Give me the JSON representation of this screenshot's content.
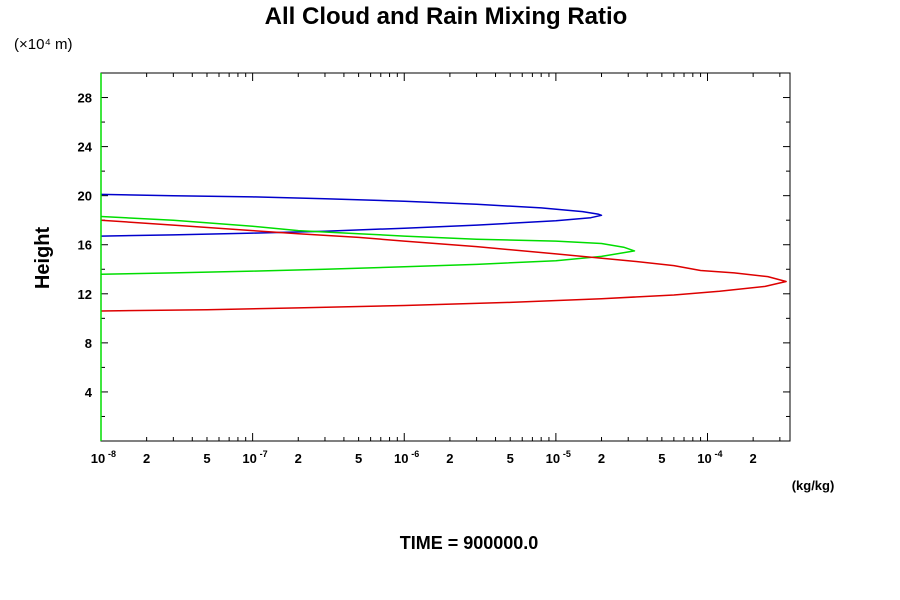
{
  "chart_data": {
    "type": "line",
    "title": "All Cloud and Rain Mixing Ratio",
    "ylabel": "Height",
    "y_unit_label": "(×10⁴ m)",
    "x_units": "(kg/kg)",
    "footer": "TIME = 900000.0",
    "x_scale": "log",
    "xlim": [
      1e-08,
      0.00035
    ],
    "ylim": [
      0,
      30
    ],
    "y_ticks": [
      4,
      8,
      12,
      16,
      20,
      24,
      28
    ],
    "y_tick_labels": [
      "4",
      "8",
      "12",
      "16",
      "20",
      "24",
      "28"
    ],
    "x_tick_labels": [
      {
        "value": 1e-08,
        "label": "10",
        "exp": "-8"
      },
      {
        "value": 2e-08,
        "label": "2"
      },
      {
        "value": 5e-08,
        "label": "5"
      },
      {
        "value": 1e-07,
        "label": "10",
        "exp": "-7"
      },
      {
        "value": 2e-07,
        "label": "2"
      },
      {
        "value": 5e-07,
        "label": "5"
      },
      {
        "value": 1e-06,
        "label": "10",
        "exp": "-6"
      },
      {
        "value": 2e-06,
        "label": "2"
      },
      {
        "value": 5e-06,
        "label": "5"
      },
      {
        "value": 1e-05,
        "label": "10",
        "exp": "-5"
      },
      {
        "value": 2e-05,
        "label": "2"
      },
      {
        "value": 5e-05,
        "label": "5"
      },
      {
        "value": 0.0001,
        "label": "10",
        "exp": "-4"
      },
      {
        "value": 0.0002,
        "label": "2"
      }
    ],
    "grid": false,
    "series": [
      {
        "color": "#0000cc",
        "points": [
          [
            1e-08,
            20.1
          ],
          [
            3e-08,
            20.0
          ],
          [
            1e-07,
            19.9
          ],
          [
            3e-07,
            19.75
          ],
          [
            1e-06,
            19.55
          ],
          [
            3e-06,
            19.3
          ],
          [
            8e-06,
            19.0
          ],
          [
            1.5e-05,
            18.7
          ],
          [
            1.9e-05,
            18.5
          ],
          [
            2e-05,
            18.4
          ],
          [
            1.7e-05,
            18.2
          ],
          [
            1e-05,
            17.95
          ],
          [
            3e-06,
            17.6
          ],
          [
            1e-06,
            17.35
          ],
          [
            3e-07,
            17.1
          ],
          [
            1e-07,
            16.95
          ],
          [
            3e-08,
            16.8
          ],
          [
            1e-08,
            16.7
          ]
        ]
      },
      {
        "color": "#00dd00",
        "points": [
          [
            1e-08,
            18.3
          ],
          [
            3e-08,
            18.0
          ],
          [
            1e-07,
            17.5
          ],
          [
            2e-07,
            17.15
          ],
          [
            5e-07,
            16.9
          ],
          [
            1e-06,
            16.7
          ],
          [
            3e-06,
            16.45
          ],
          [
            1e-05,
            16.3
          ],
          [
            2e-05,
            16.1
          ],
          [
            2.8e-05,
            15.8
          ],
          [
            3.3e-05,
            15.5
          ],
          [
            2e-05,
            15.05
          ],
          [
            1e-05,
            14.7
          ],
          [
            3e-06,
            14.4
          ],
          [
            1e-06,
            14.2
          ],
          [
            3e-07,
            14.0
          ],
          [
            1e-07,
            13.85
          ],
          [
            3e-08,
            13.7
          ],
          [
            1e-08,
            13.6
          ]
        ]
      },
      {
        "color": "#dd0000",
        "points": [
          [
            1e-08,
            18.0
          ],
          [
            3e-08,
            17.6
          ],
          [
            1e-07,
            17.15
          ],
          [
            2e-07,
            16.9
          ],
          [
            5e-07,
            16.6
          ],
          [
            1e-06,
            16.3
          ],
          [
            3e-06,
            15.85
          ],
          [
            1e-05,
            15.25
          ],
          [
            3e-05,
            14.7
          ],
          [
            6e-05,
            14.3
          ],
          [
            9e-05,
            13.9
          ],
          [
            0.00015,
            13.7
          ],
          [
            0.00025,
            13.4
          ],
          [
            0.00033,
            13.0
          ],
          [
            0.00024,
            12.6
          ],
          [
            0.00012,
            12.2
          ],
          [
            6e-05,
            11.9
          ],
          [
            2e-05,
            11.6
          ],
          [
            5e-06,
            11.3
          ],
          [
            1e-06,
            11.05
          ],
          [
            2e-07,
            10.85
          ],
          [
            5e-08,
            10.7
          ],
          [
            1e-08,
            10.6
          ]
        ]
      }
    ]
  }
}
